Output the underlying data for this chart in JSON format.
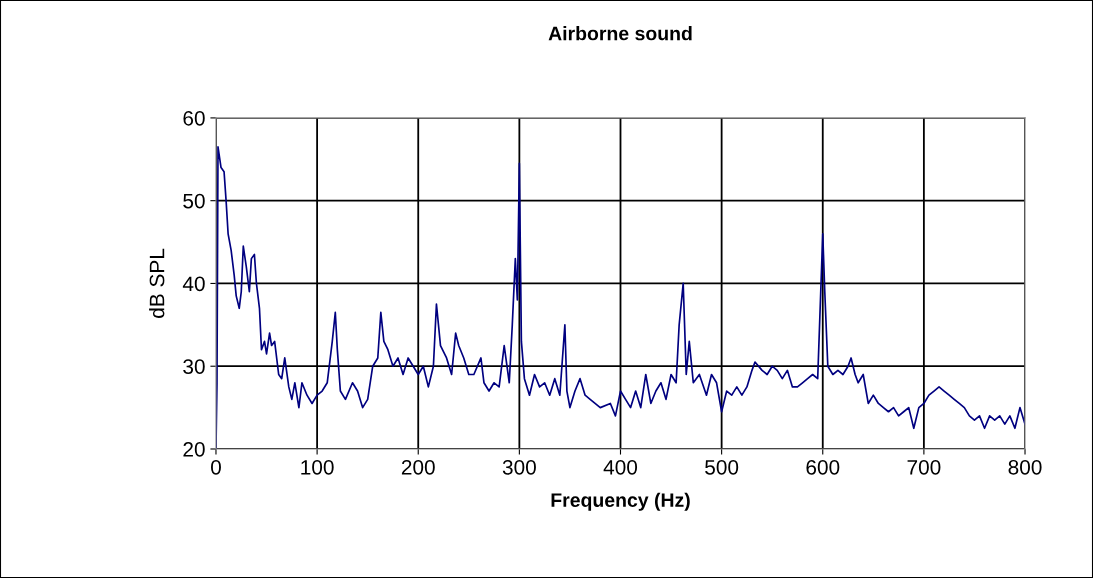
{
  "chart_data": {
    "type": "line",
    "title": "Airborne sound",
    "xlabel": "Frequency (Hz)",
    "ylabel": "dB SPL",
    "xlim": [
      0,
      800
    ],
    "xticks": [
      0,
      100,
      200,
      300,
      400,
      500,
      600,
      700,
      800
    ],
    "ylim": [
      20,
      60
    ],
    "yticks": [
      20,
      30,
      40,
      50,
      60
    ],
    "grid": true,
    "marker": "none",
    "line_style": "solid",
    "series": [
      {
        "color": "#000080",
        "x": [
          0,
          1,
          2,
          5,
          8,
          10,
          12,
          15,
          18,
          20,
          23,
          25,
          27,
          30,
          33,
          35,
          38,
          40,
          43,
          45,
          48,
          50,
          53,
          55,
          58,
          62,
          65,
          68,
          72,
          75,
          78,
          82,
          85,
          90,
          95,
          100,
          105,
          110,
          115,
          118,
          120,
          123,
          128,
          135,
          140,
          145,
          150,
          155,
          160,
          163,
          166,
          170,
          175,
          180,
          185,
          190,
          195,
          200,
          205,
          210,
          215,
          218,
          222,
          228,
          233,
          237,
          240,
          245,
          250,
          255,
          262,
          265,
          270,
          275,
          280,
          285,
          290,
          293,
          296,
          298,
          300,
          302,
          305,
          310,
          315,
          320,
          325,
          330,
          335,
          340,
          345,
          347,
          350,
          355,
          360,
          365,
          370,
          380,
          390,
          395,
          400,
          405,
          410,
          415,
          420,
          425,
          430,
          435,
          440,
          445,
          450,
          455,
          458,
          462,
          465,
          468,
          472,
          478,
          485,
          490,
          495,
          500,
          505,
          510,
          515,
          520,
          525,
          530,
          533,
          540,
          545,
          550,
          555,
          560,
          565,
          570,
          575,
          580,
          585,
          590,
          595,
          600,
          602,
          605,
          610,
          615,
          620,
          625,
          628,
          632,
          635,
          640,
          645,
          650,
          655,
          660,
          665,
          670,
          675,
          680,
          685,
          690,
          695,
          700,
          705,
          710,
          715,
          720,
          725,
          730,
          735,
          740,
          745,
          750,
          755,
          760,
          765,
          770,
          775,
          780,
          785,
          790,
          795,
          800
        ],
        "values": [
          20,
          28,
          56.5,
          54,
          53.5,
          50,
          46,
          44,
          41,
          38.5,
          37,
          39,
          44.5,
          42,
          39,
          43,
          43.5,
          40,
          37,
          32,
          33,
          31.5,
          34,
          32.5,
          33,
          29,
          28.5,
          31,
          27.5,
          26,
          28,
          25,
          28,
          26.5,
          25.5,
          26.5,
          27,
          28,
          33,
          36.5,
          32,
          27,
          26,
          28,
          27,
          25,
          26,
          30,
          31,
          36.5,
          33,
          32,
          30,
          31,
          29,
          31,
          30,
          29,
          30,
          27.5,
          30,
          37.5,
          32.5,
          31,
          29,
          34,
          32.5,
          31,
          29,
          29,
          31,
          28,
          27,
          28,
          27.5,
          32.5,
          28,
          35,
          43,
          38,
          54.5,
          33,
          28.5,
          26.5,
          29,
          27.5,
          28,
          26.5,
          28.5,
          26.5,
          35,
          27,
          25,
          27,
          28.5,
          26.5,
          26,
          25,
          25.5,
          24,
          27,
          26,
          25,
          27,
          25,
          29,
          25.5,
          27,
          28,
          26,
          29,
          28,
          35,
          40,
          29,
          33,
          28,
          29,
          26.5,
          29,
          28,
          24.5,
          27,
          26.5,
          27.5,
          26.5,
          27.5,
          29.5,
          30.5,
          29.5,
          29,
          30,
          29.5,
          28.5,
          29.5,
          27.5,
          27.5,
          28,
          28.5,
          29,
          28.5,
          46,
          39,
          30,
          29,
          29.5,
          29,
          30,
          31,
          29,
          28,
          29,
          25.5,
          26.5,
          25.5,
          25,
          24.5,
          25,
          24,
          24.5,
          25,
          22.5,
          25,
          25.5,
          26.5,
          27,
          27.5,
          27,
          26.5,
          26,
          25.5,
          25,
          24,
          23.5,
          24,
          22.5,
          24,
          23.5,
          24,
          23,
          24,
          22.5,
          25,
          23
        ]
      }
    ]
  }
}
